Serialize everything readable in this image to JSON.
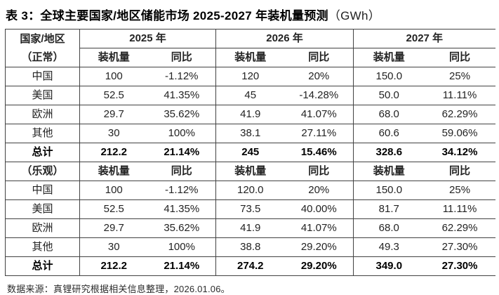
{
  "title": {
    "main": "表 3：全球主要国家/地区储能市场 2025-2027 年装机量预测",
    "unit": "（GWh）"
  },
  "table": {
    "corner_header": "国家/地区",
    "year_headers": [
      "2025 年",
      "2026 年",
      "2027 年"
    ],
    "sub_capacity": "装机量",
    "sub_yoy": "同比"
  },
  "footer": {
    "source": "数据来源：真锂研究根据相关信息整理，2026.01.06。"
  },
  "colors": {
    "border": "#424242",
    "text": "#232323",
    "bold_text": "#000000",
    "background": "#ffffff"
  },
  "chart_data": {
    "type": "table",
    "title": "全球主要国家/地区储能市场 2025-2027 年装机量预测",
    "unit": "GWh",
    "columns": [
      "国家/地区",
      "2025 装机量",
      "2025 同比",
      "2026 装机量",
      "2026 同比",
      "2027 装机量",
      "2027 同比"
    ],
    "sections": [
      {
        "scenario": "（正常）",
        "rows": [
          {
            "cells": [
              "中国",
              "100",
              "-1.12%",
              "120",
              "20%",
              "150.0",
              "25%"
            ],
            "bold": false
          },
          {
            "cells": [
              "美国",
              "52.5",
              "41.35%",
              "45",
              "-14.28%",
              "50.0",
              "11.11%"
            ],
            "bold": false
          },
          {
            "cells": [
              "欧洲",
              "29.7",
              "35.62%",
              "41.9",
              "41.07%",
              "68.0",
              "62.29%"
            ],
            "bold": false
          },
          {
            "cells": [
              "其他",
              "30",
              "100%",
              "38.1",
              "27.11%",
              "60.6",
              "59.06%"
            ],
            "bold": false
          },
          {
            "cells": [
              "总计",
              "212.2",
              "21.14%",
              "245",
              "15.46%",
              "328.6",
              "34.12%"
            ],
            "bold": true
          }
        ]
      },
      {
        "scenario": "（乐观）",
        "rows": [
          {
            "cells": [
              "中国",
              "100",
              "-1.12%",
              "120.0",
              "20%",
              "150.0",
              "25%"
            ],
            "bold": false
          },
          {
            "cells": [
              "美国",
              "52.5",
              "41.35%",
              "73.5",
              "40.00%",
              "81.7",
              "11.11%"
            ],
            "bold": false
          },
          {
            "cells": [
              "欧洲",
              "29.7",
              "35.62%",
              "41.9",
              "41.07%",
              "68.0",
              "62.29%"
            ],
            "bold": false
          },
          {
            "cells": [
              "其他",
              "30",
              "100%",
              "38.8",
              "29.20%",
              "49.3",
              "27.30%"
            ],
            "bold": false
          },
          {
            "cells": [
              "总计",
              "212.2",
              "21.14%",
              "274.2",
              "29.20%",
              "349.0",
              "27.30%"
            ],
            "bold": true
          }
        ]
      }
    ]
  }
}
